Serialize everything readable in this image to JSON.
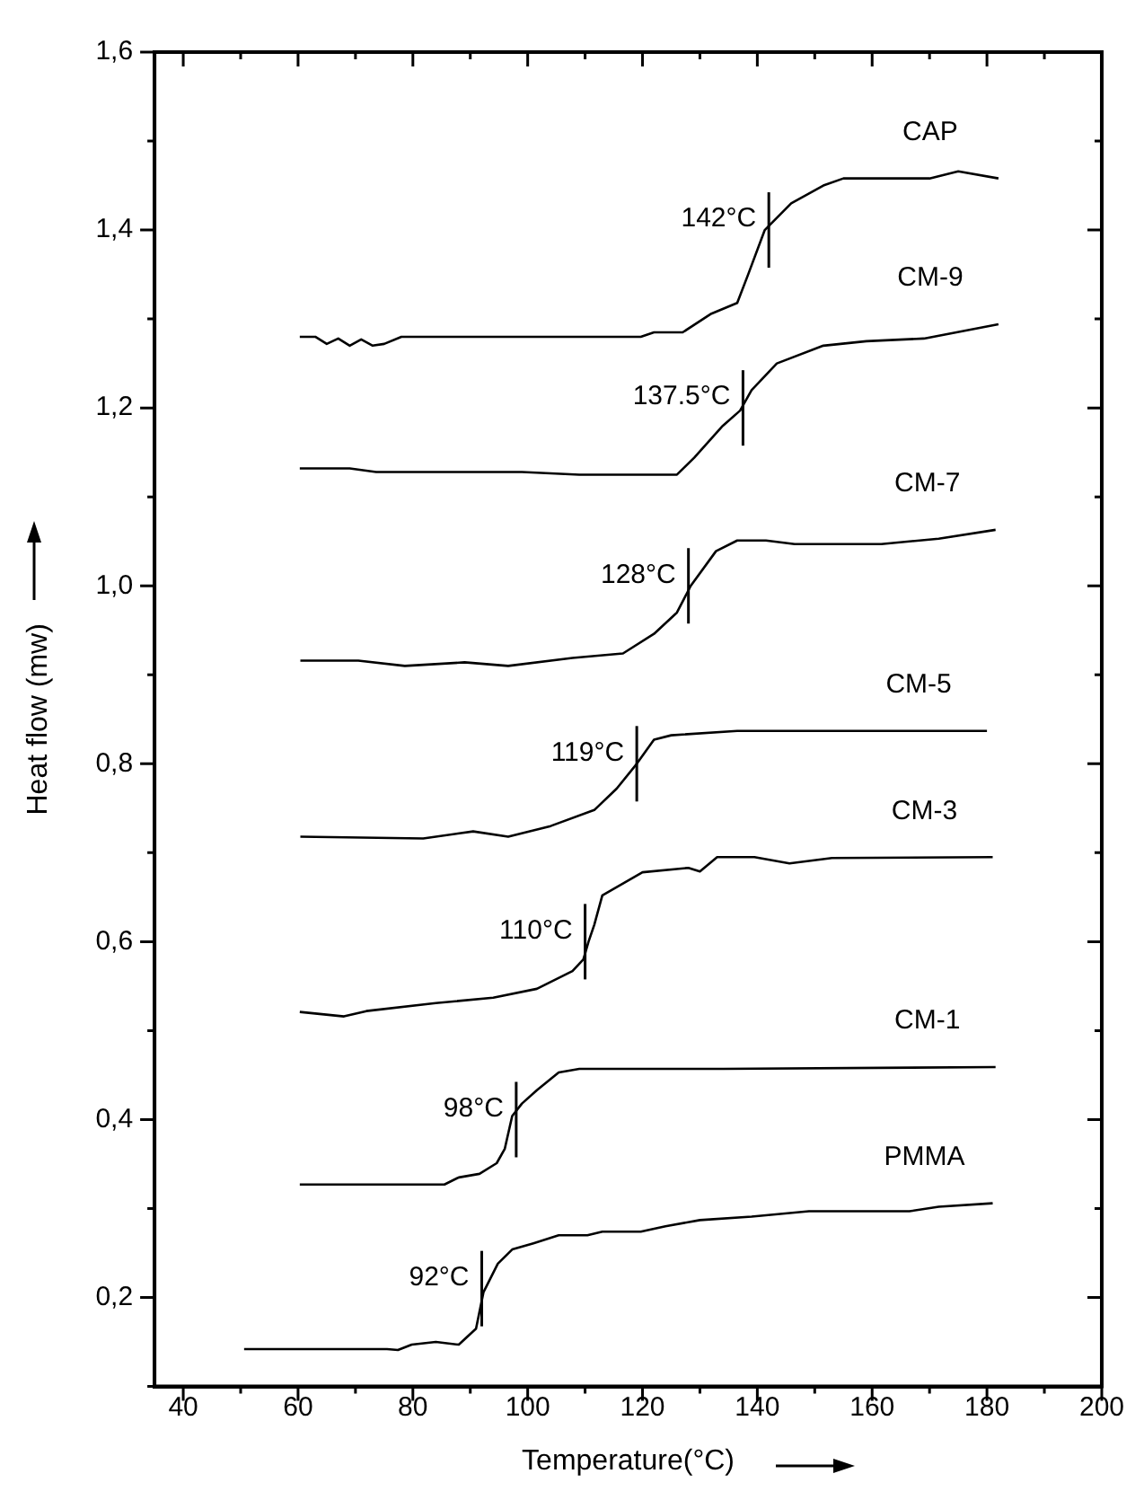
{
  "chart_data": {
    "type": "line",
    "xlabel": "Temperature(°C)",
    "ylabel": "Heat flow (mw)",
    "xlim": [
      35,
      200
    ],
    "ylim": [
      0.1,
      1.6
    ],
    "xticks": [
      40,
      {
        "value": 50,
        "label": null
      },
      60,
      {
        "value": 70,
        "label": null
      },
      80,
      {
        "value": 90,
        "label": null
      },
      100,
      {
        "value": 110,
        "label": null
      },
      120,
      {
        "value": 130,
        "label": null
      },
      140,
      {
        "value": 150,
        "label": null
      },
      160,
      {
        "value": 170,
        "label": null
      },
      180,
      {
        "value": 190,
        "label": null
      },
      200
    ],
    "yticks": [
      {
        "value": 0.1,
        "label": null
      },
      {
        "value": 0.2,
        "label": "0,2"
      },
      {
        "value": 0.3,
        "label": null
      },
      {
        "value": 0.4,
        "label": "0,4"
      },
      {
        "value": 0.5,
        "label": null
      },
      {
        "value": 0.6,
        "label": "0,6"
      },
      {
        "value": 0.7,
        "label": null
      },
      {
        "value": 0.8,
        "label": "0,8"
      },
      {
        "value": 0.9,
        "label": null
      },
      {
        "value": 1.0,
        "label": "1,0"
      },
      {
        "value": 1.1,
        "label": null
      },
      {
        "value": 1.2,
        "label": "1,2"
      },
      {
        "value": 1.3,
        "label": null
      },
      {
        "value": 1.4,
        "label": "1,4"
      },
      {
        "value": 1.5,
        "label": null
      },
      {
        "value": 1.6,
        "label": "1,6"
      }
    ],
    "grid": false,
    "legend": false,
    "marker": "none",
    "line_style": "solid",
    "series": [
      {
        "name": "CAP",
        "color": "#000000",
        "x": [
          60.3,
          63,
          65,
          67,
          69,
          71,
          73,
          75,
          78,
          90,
          119.7,
          122,
          127,
          132,
          136.5,
          138.4,
          141.3,
          145.9,
          151.5,
          155,
          170,
          175,
          182
        ],
        "values": [
          1.28,
          1.28,
          1.272,
          1.278,
          1.27,
          1.277,
          1.27,
          1.272,
          1.28,
          1.28,
          1.28,
          1.285,
          1.285,
          1.306,
          1.318,
          1.35,
          1.4,
          1.43,
          1.45,
          1.458,
          1.458,
          1.466,
          1.458
        ]
      },
      {
        "name": "CM-9",
        "color": "#000000",
        "x": [
          60.3,
          69,
          73.6,
          99,
          109,
          126,
          129,
          134,
          137,
          139,
          143.4,
          151.5,
          159,
          169,
          182
        ],
        "values": [
          1.132,
          1.132,
          1.128,
          1.128,
          1.125,
          1.125,
          1.144,
          1.18,
          1.197,
          1.22,
          1.25,
          1.27,
          1.275,
          1.278,
          1.294
        ]
      },
      {
        "name": "CM-7",
        "color": "#000000",
        "x": [
          60.4,
          70.5,
          78.6,
          89,
          96.6,
          107.8,
          116.6,
          122,
          126,
          128.4,
          132.8,
          136.5,
          141.5,
          146.5,
          161.6,
          171.6,
          181.5
        ],
        "values": [
          0.916,
          0.916,
          0.91,
          0.914,
          0.91,
          0.919,
          0.924,
          0.946,
          0.97,
          1.0,
          1.039,
          1.051,
          1.051,
          1.047,
          1.047,
          1.053,
          1.063
        ]
      },
      {
        "name": "CM-5",
        "color": "#000000",
        "x": [
          60.4,
          81.8,
          90.5,
          96.6,
          104,
          111.6,
          115.5,
          119,
          122,
          125,
          136.5,
          180
        ],
        "values": [
          0.718,
          0.716,
          0.724,
          0.718,
          0.73,
          0.748,
          0.772,
          0.8,
          0.827,
          0.832,
          0.837,
          0.837
        ]
      },
      {
        "name": "CM-3",
        "color": "#000000",
        "x": [
          60.3,
          68,
          71.9,
          84,
          94,
          101.6,
          107.8,
          109.7,
          110.6,
          111.6,
          113,
          120,
          128,
          130,
          133,
          139.5,
          145.6,
          153,
          181
        ],
        "values": [
          0.521,
          0.516,
          0.522,
          0.531,
          0.537,
          0.547,
          0.567,
          0.58,
          0.6,
          0.619,
          0.652,
          0.678,
          0.683,
          0.679,
          0.695,
          0.695,
          0.688,
          0.694,
          0.695
        ]
      },
      {
        "name": "CM-1",
        "color": "#000000",
        "x": [
          60.3,
          85.5,
          88,
          91.6,
          94.6,
          96,
          97.3,
          99,
          101.6,
          105.4,
          109,
          134,
          181.5
        ],
        "values": [
          0.327,
          0.327,
          0.335,
          0.339,
          0.351,
          0.367,
          0.404,
          0.418,
          0.433,
          0.453,
          0.457,
          0.457,
          0.459
        ]
      },
      {
        "name": "PMMA",
        "color": "#000000",
        "x": [
          50.6,
          75.5,
          77.4,
          79.8,
          84,
          88,
          91,
          92.3,
          94.8,
          97.3,
          101,
          105.4,
          110.4,
          113,
          119.7,
          124,
          130,
          139,
          149,
          166.5,
          171.6,
          181
        ],
        "values": [
          0.142,
          0.142,
          0.141,
          0.147,
          0.15,
          0.147,
          0.165,
          0.206,
          0.238,
          0.254,
          0.261,
          0.27,
          0.27,
          0.274,
          0.274,
          0.28,
          0.287,
          0.291,
          0.297,
          0.297,
          0.302,
          0.306
        ]
      }
    ],
    "annotations": [
      {
        "text": "142°C",
        "x": 142,
        "y": 1.4
      },
      {
        "text": "137.5°C",
        "x": 137.5,
        "y": 1.2
      },
      {
        "text": "128°C",
        "x": 128,
        "y": 1.0
      },
      {
        "text": "119°C",
        "x": 119,
        "y": 0.8
      },
      {
        "text": "110°C",
        "x": 110,
        "y": 0.6
      },
      {
        "text": "98°C",
        "x": 98,
        "y": 0.4
      },
      {
        "text": "92°C",
        "x": 92,
        "y": 0.21
      }
    ]
  }
}
